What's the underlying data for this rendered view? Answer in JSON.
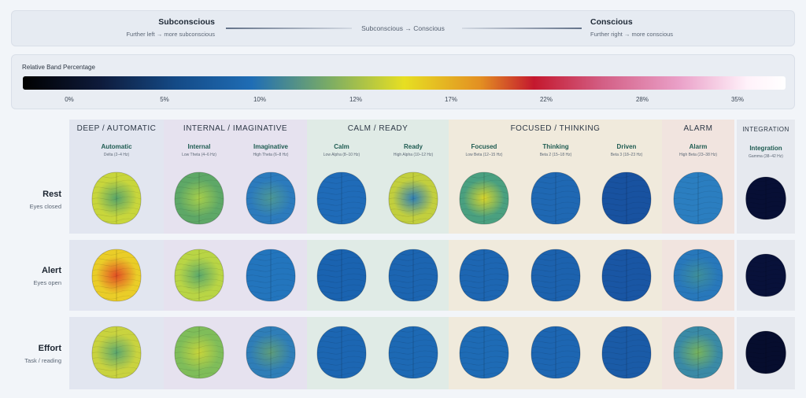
{
  "axis": {
    "left_title": "Subconscious",
    "left_sub": "Further left → more subconscious",
    "center": "Subconscious → Conscious",
    "right_title": "Conscious",
    "right_sub": "Further right → more conscious"
  },
  "colorbar": {
    "title": "Relative Band Percentage",
    "stops": [
      "#000000",
      "#144a86",
      "#1f6db5",
      "#79ab66",
      "#e7df22",
      "#e38f22",
      "#c4182e",
      "#d35f85",
      "#eaa0c8",
      "#ffffff"
    ],
    "ticks": [
      "0%",
      "5%",
      "10%",
      "12%",
      "17%",
      "22%",
      "28%",
      "35%"
    ]
  },
  "categories": [
    {
      "label": "DEEP / AUTOMATIC",
      "bg": "#e2e6f0"
    },
    {
      "label": "INTERNAL / IMAGINATIVE",
      "bg": "#e6e2ef"
    },
    {
      "label": "CALM / READY",
      "bg": "#e0ebe6"
    },
    {
      "label": "FOCUSED / THINKING",
      "bg": "#f0eadc"
    },
    {
      "label": "ALARM",
      "bg": "#f1e4df"
    },
    {
      "label": "INTEGRATION",
      "bg": "#e6e9ef"
    }
  ],
  "columns": [
    {
      "name": "Automatic",
      "freq": "Delta (2–4 Hz)"
    },
    {
      "name": "Internal",
      "freq": "Low Theta (4–6 Hz)"
    },
    {
      "name": "Imaginative",
      "freq": "High Theta (6–8 Hz)"
    },
    {
      "name": "Calm",
      "freq": "Low Alpha (8–10 Hz)"
    },
    {
      "name": "Ready",
      "freq": "High Alpha (10–12 Hz)"
    },
    {
      "name": "Focused",
      "freq": "Low Beta (12–15 Hz)"
    },
    {
      "name": "Thinking",
      "freq": "Beta 2 (15–18 Hz)"
    },
    {
      "name": "Driven",
      "freq": "Beta 3 (18–23 Hz)"
    },
    {
      "name": "Alarm",
      "freq": "High Beta (23–38 Hz)"
    },
    {
      "name": "Integration",
      "freq": "Gamma (38–42 Hz)"
    }
  ],
  "rows": [
    {
      "name": "Rest",
      "sub": "Eyes closed"
    },
    {
      "name": "Alert",
      "sub": "Eyes open"
    },
    {
      "name": "Effort",
      "sub": "Task / reading"
    }
  ],
  "maps": [
    [
      {
        "base": "#c8d63c",
        "spots": [
          {
            "c": "#56a46a"
          }
        ]
      },
      {
        "base": "#5ea867",
        "spots": [
          {
            "c": "#a7cf4a"
          }
        ]
      },
      {
        "base": "#2c7bbd",
        "spots": [
          {
            "c": "#4d9894"
          }
        ]
      },
      {
        "base": "#1f6bb8",
        "spots": []
      },
      {
        "base": "#c2cf3e",
        "spots": [
          {
            "c": "#2f7fb7"
          }
        ]
      },
      {
        "base": "#4aa080",
        "spots": [
          {
            "c": "#d9d52a"
          }
        ]
      },
      {
        "base": "#1f68b3",
        "spots": []
      },
      {
        "base": "#1852a0",
        "spots": []
      },
      {
        "base": "#2b7ec0",
        "spots": []
      },
      {
        "base": "#070f35",
        "spots": []
      }
    ],
    [
      {
        "base": "#eacd28",
        "spots": [
          {
            "c": "#e24f24"
          }
        ]
      },
      {
        "base": "#b9d545",
        "spots": [
          {
            "c": "#5aa86b"
          }
        ]
      },
      {
        "base": "#2375bd",
        "spots": []
      },
      {
        "base": "#1a63b0",
        "spots": []
      },
      {
        "base": "#1c65b1",
        "spots": []
      },
      {
        "base": "#1d66b2",
        "spots": []
      },
      {
        "base": "#1c62ae",
        "spots": []
      },
      {
        "base": "#1956a4",
        "spots": []
      },
      {
        "base": "#2878bb",
        "spots": [
          {
            "c": "#3f8f99"
          }
        ]
      },
      {
        "base": "#08113a",
        "spots": []
      }
    ],
    [
      {
        "base": "#c9d33f",
        "spots": [
          {
            "c": "#5aa770"
          }
        ]
      },
      {
        "base": "#7fbd5a",
        "spots": [
          {
            "c": "#c8d53a"
          }
        ]
      },
      {
        "base": "#2f7eb8",
        "spots": [
          {
            "c": "#5e9d7a"
          }
        ]
      },
      {
        "base": "#1c66b2",
        "spots": []
      },
      {
        "base": "#1d69b4",
        "spots": []
      },
      {
        "base": "#1e6bb5",
        "spots": []
      },
      {
        "base": "#1d66b2",
        "spots": []
      },
      {
        "base": "#1a5ba7",
        "spots": []
      },
      {
        "base": "#3a8aa6",
        "spots": [
          {
            "c": "#78b45c"
          }
        ]
      },
      {
        "base": "#060d2e",
        "spots": []
      }
    ]
  ]
}
